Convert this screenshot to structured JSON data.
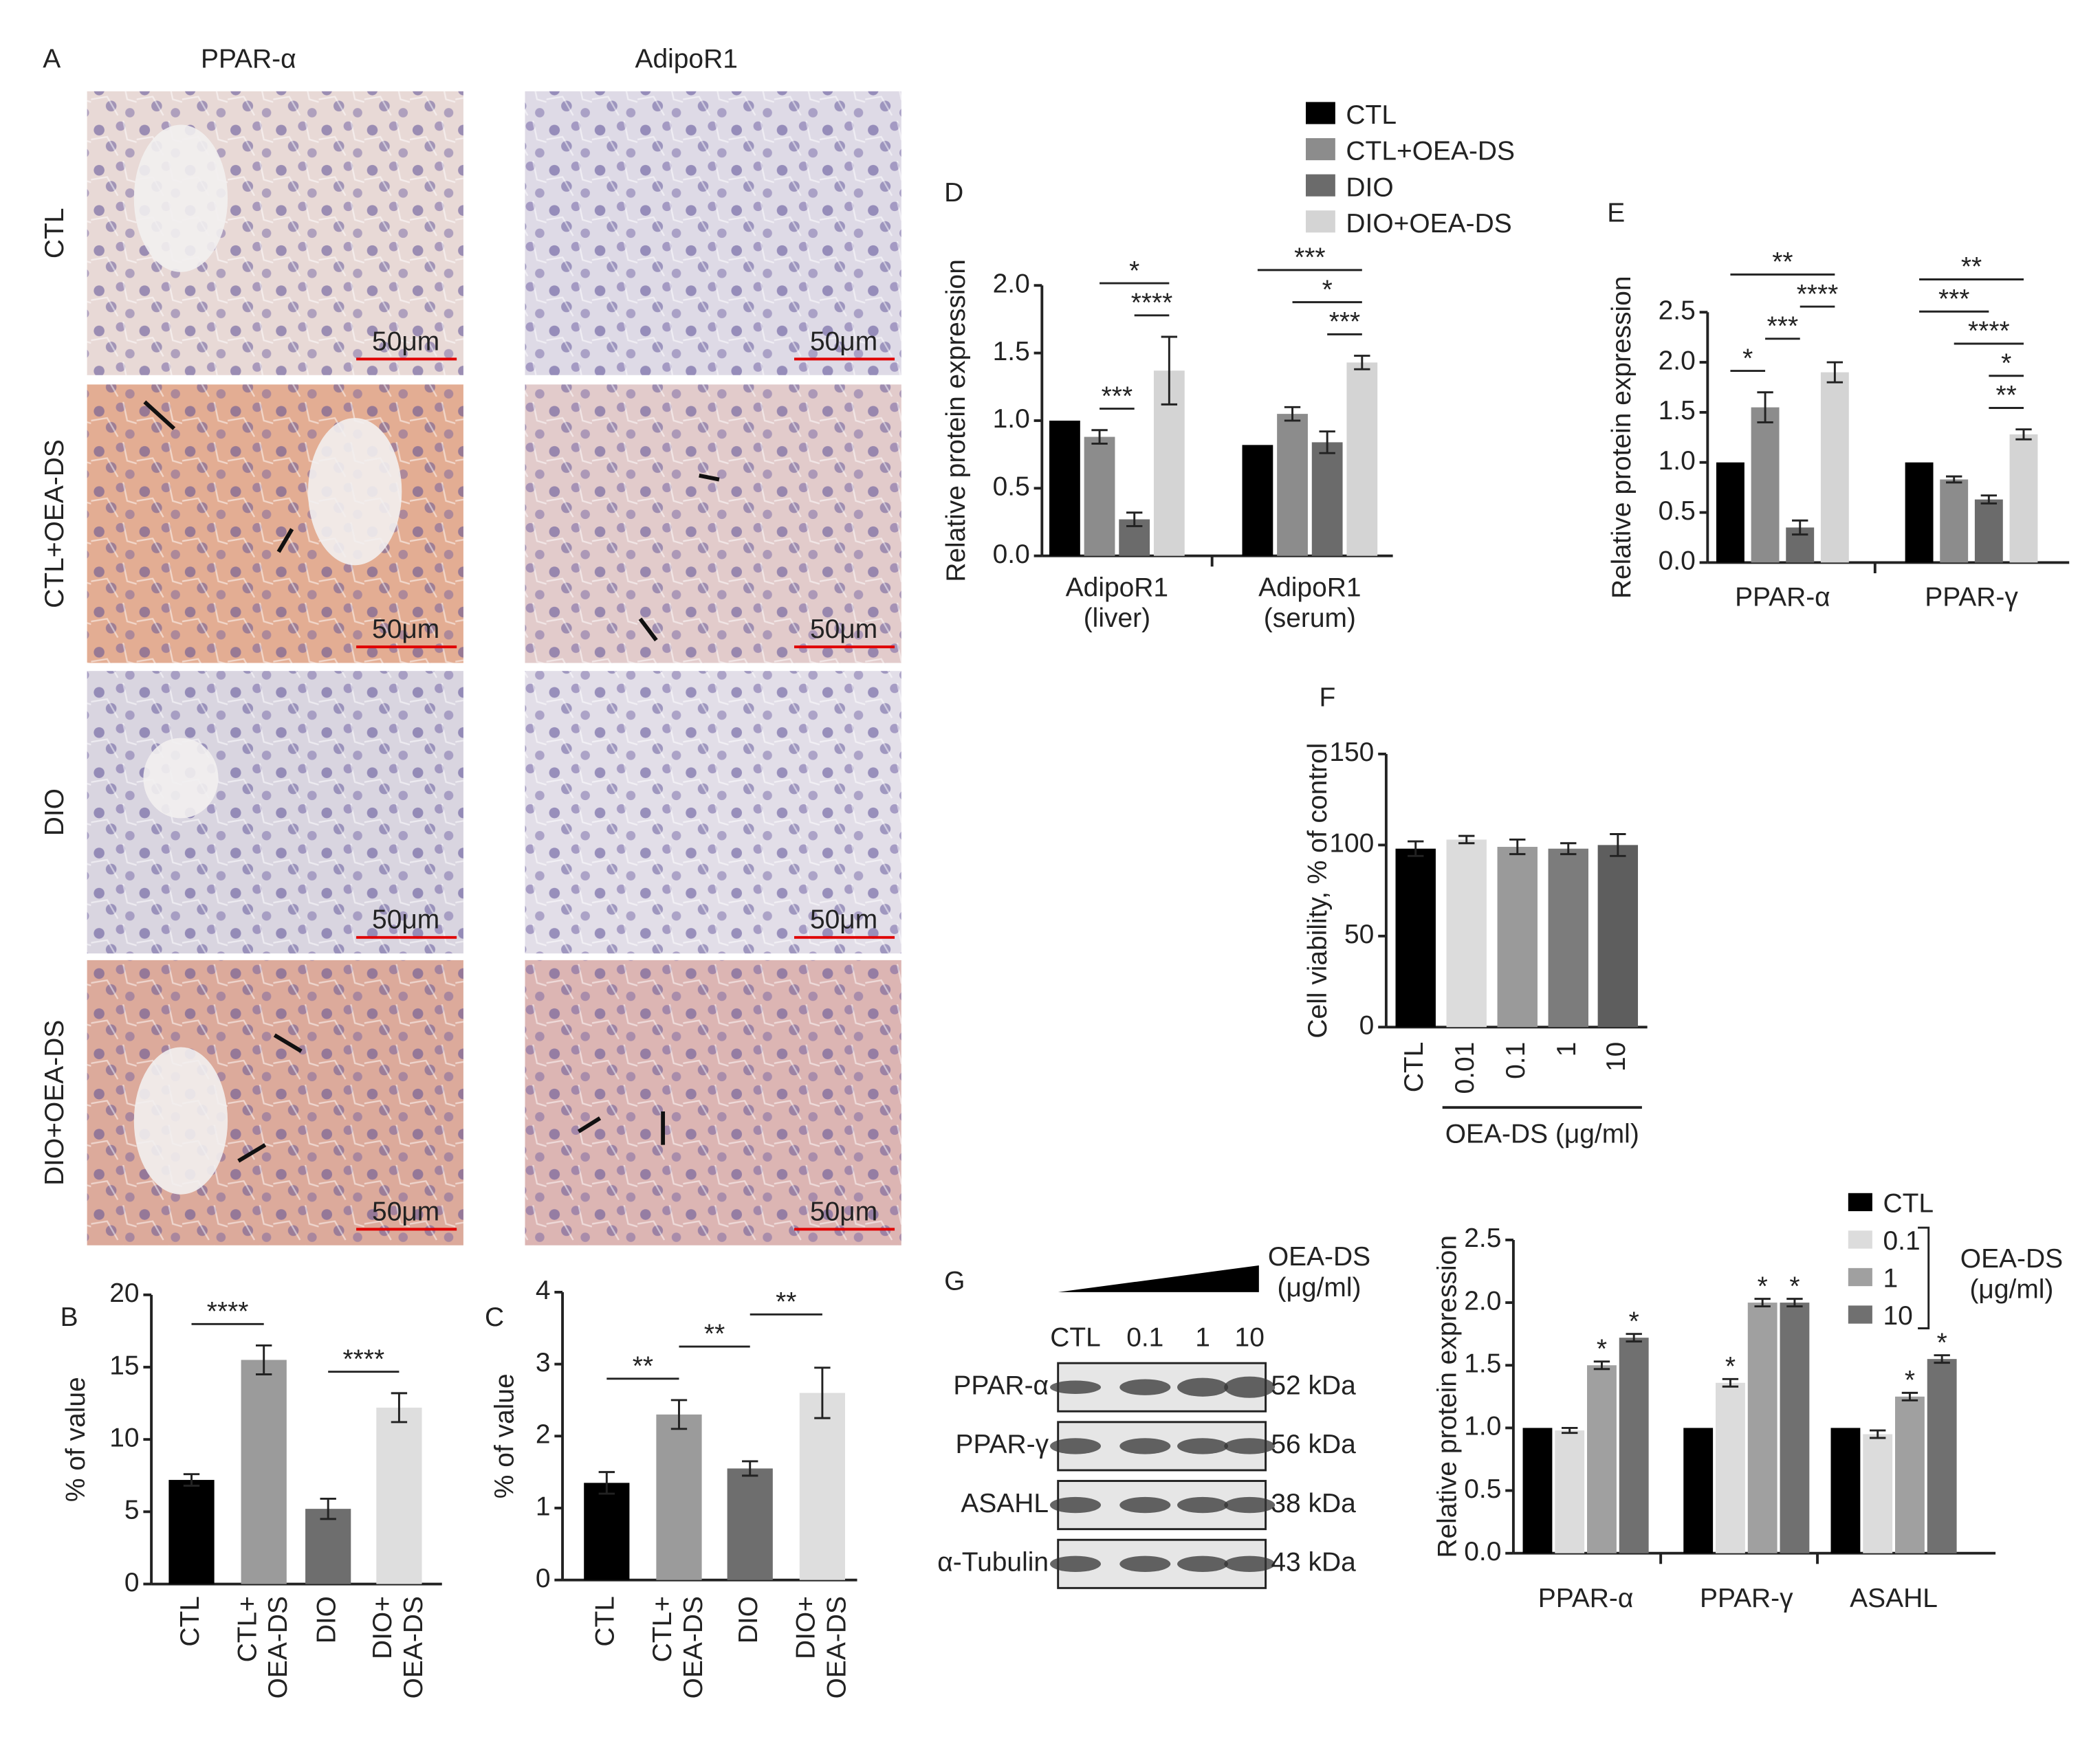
{
  "histology": {
    "panel": "A",
    "columns": [
      "PPAR-α",
      "AdipoR1"
    ],
    "rows": [
      "CTL",
      "CTL+OEA-DS",
      "DIO",
      "DIO+OEA-DS"
    ],
    "scale_bar": "50μm"
  },
  "blot": {
    "treatment": "OEA-DS\n(μg/ml)",
    "lanes": [
      "CTL",
      "0.1",
      "1",
      "10"
    ],
    "rows": [
      {
        "protein": "PPAR-α",
        "size": "52 kDa"
      },
      {
        "protein": "PPAR-γ",
        "size": "56 kDa"
      },
      {
        "protein": "ASAHL",
        "size": "38 kDa"
      },
      {
        "protein": "α-Tubulin",
        "size": "43 kDa"
      }
    ]
  },
  "chart_data": [
    {
      "type": "bar",
      "panel": "B",
      "ylabel": "% of value",
      "categories": [
        "CTL",
        "CTL+\nOEA-DS",
        "DIO",
        "DIO+\nOEA-DS"
      ],
      "values": [
        7.2,
        15.5,
        5.2,
        12.2
      ],
      "errors": [
        0.4,
        1.0,
        0.7,
        1.0
      ],
      "colors": [
        "#000000",
        "#9b9b9b",
        "#6e6e6e",
        "#dedede"
      ],
      "ylim": [
        0,
        20
      ],
      "yticks": [
        0,
        5,
        10,
        15,
        20
      ],
      "significance": [
        {
          "from": 0,
          "to": 1,
          "label": "****"
        },
        {
          "from": 2,
          "to": 3,
          "label": "****"
        }
      ]
    },
    {
      "type": "bar",
      "panel": "C",
      "ylabel": "% of value",
      "categories": [
        "CTL",
        "CTL+\nOEA-DS",
        "DIO",
        "DIO+\nOEA-DS"
      ],
      "values": [
        1.35,
        2.3,
        1.55,
        2.6
      ],
      "errors": [
        0.15,
        0.2,
        0.1,
        0.35
      ],
      "colors": [
        "#000000",
        "#9b9b9b",
        "#6e6e6e",
        "#dedede"
      ],
      "ylim": [
        0,
        4
      ],
      "yticks": [
        0,
        1,
        2,
        3,
        4
      ],
      "significance": [
        {
          "from": 0,
          "to": 1,
          "label": "**"
        },
        {
          "from": 1,
          "to": 2,
          "label": "**"
        },
        {
          "from": 2,
          "to": 3,
          "label": "**"
        }
      ]
    },
    {
      "type": "bar",
      "panel": "D",
      "ylabel": "Relative protein expression",
      "categories": [
        "AdipoR1\n(liver)",
        "AdipoR1\n(serum)"
      ],
      "series": [
        {
          "name": "CTL",
          "color": "#000000",
          "values": [
            1.0,
            0.82
          ],
          "errors": [
            null,
            null
          ]
        },
        {
          "name": "CTL+OEA-DS",
          "color": "#8c8c8c",
          "values": [
            0.88,
            1.05
          ],
          "errors": [
            0.05,
            0.05
          ]
        },
        {
          "name": "DIO",
          "color": "#6b6b6b",
          "values": [
            0.27,
            0.84
          ],
          "errors": [
            0.05,
            0.08
          ]
        },
        {
          "name": "DIO+OEA-DS",
          "color": "#d4d4d4",
          "values": [
            1.37,
            1.43
          ],
          "errors": [
            0.25,
            0.05
          ]
        }
      ],
      "ylim": [
        0,
        2
      ],
      "yticks": [
        {
          "value": 0,
          "label": "0.0"
        },
        0.5,
        {
          "value": 1,
          "label": "1.0"
        },
        1.5,
        {
          "value": 2,
          "label": "2.0"
        }
      ],
      "significance": [
        {
          "group": 0,
          "from": 1,
          "to": 2,
          "label": "***"
        },
        {
          "group": 0,
          "from": 2,
          "to": 3,
          "label": "****"
        },
        {
          "group": 0,
          "from": 1,
          "to": 3,
          "label": "*"
        },
        {
          "group": 1,
          "from": 2,
          "to": 3,
          "label": "***"
        },
        {
          "group": 1,
          "from": 1,
          "to": 3,
          "label": "*"
        },
        {
          "group": 1,
          "from": 0,
          "to": 3,
          "label": "***"
        }
      ]
    },
    {
      "type": "bar",
      "panel": "E",
      "ylabel": "Relative protein expression",
      "categories": [
        "PPAR-α",
        "PPAR-γ"
      ],
      "series": [
        {
          "color": "#000000",
          "values": [
            1.0,
            1.0
          ],
          "errors": [
            null,
            null
          ]
        },
        {
          "color": "#8c8c8c",
          "values": [
            1.55,
            0.83
          ],
          "errors": [
            0.15,
            0.03
          ]
        },
        {
          "color": "#6b6b6b",
          "values": [
            0.35,
            0.63
          ],
          "errors": [
            0.07,
            0.04
          ]
        },
        {
          "color": "#d4d4d4",
          "values": [
            1.9,
            1.28
          ],
          "errors": [
            0.1,
            0.05
          ]
        }
      ],
      "ylim": [
        0,
        2.5
      ],
      "yticks": [
        {
          "value": 0,
          "label": "0.0"
        },
        0.5,
        {
          "value": 1,
          "label": "1.0"
        },
        1.5,
        {
          "value": 2,
          "label": "2.0"
        },
        2.5
      ],
      "significance": [
        {
          "group": 0,
          "from": 0,
          "to": 1,
          "label": "*"
        },
        {
          "group": 0,
          "from": 1,
          "to": 2,
          "label": "***"
        },
        {
          "group": 0,
          "from": 2,
          "to": 3,
          "label": "****"
        },
        {
          "group": 0,
          "from": 0,
          "to": 3,
          "label": "**"
        },
        {
          "group": 1,
          "from": 2,
          "to": 3,
          "label": "**"
        },
        {
          "group": 1,
          "from": 2,
          "to": 3,
          "label": "*"
        },
        {
          "group": 1,
          "from": 1,
          "to": 3,
          "label": "****"
        },
        {
          "group": 1,
          "from": 0,
          "to": 2,
          "label": "***"
        },
        {
          "group": 1,
          "from": 0,
          "to": 3,
          "label": "**"
        }
      ]
    },
    {
      "type": "bar",
      "panel": "F",
      "ylabel": "Cell viability, % of control",
      "xlabel": "OEA-DS (μg/ml)",
      "categories": [
        "CTL",
        "0.01",
        "0.1",
        "1",
        "10"
      ],
      "values": [
        98,
        103,
        99,
        98,
        100
      ],
      "errors": [
        4,
        2,
        4,
        3,
        6
      ],
      "colors": [
        "#000000",
        "#dcdcdc",
        "#9a9a9a",
        "#7c7c7c",
        "#5e5e5e"
      ],
      "ylim": [
        0,
        150
      ],
      "yticks": [
        0,
        50,
        100,
        150
      ]
    },
    {
      "type": "bar",
      "panel": "G",
      "ylabel": "Relative protein expression",
      "categories": [
        "PPAR-α",
        "PPAR-γ",
        "ASAHL"
      ],
      "legend_title": "OEA-DS\n(μg/ml)",
      "series": [
        {
          "name": "CTL",
          "color": "#000000",
          "values": [
            1.0,
            1.0,
            1.0
          ],
          "errors": [
            null,
            null,
            null
          ]
        },
        {
          "name": "0.1",
          "color": "#dcdcdc",
          "values": [
            0.98,
            1.36,
            0.95
          ],
          "errors": [
            0.02,
            0.03,
            0.03
          ]
        },
        {
          "name": "1",
          "color": "#a0a0a0",
          "values": [
            1.5,
            2.0,
            1.25
          ],
          "errors": [
            0.03,
            0.03,
            0.03
          ]
        },
        {
          "name": "10",
          "color": "#707070",
          "values": [
            1.72,
            2.0,
            1.55
          ],
          "errors": [
            0.03,
            0.03,
            0.03
          ]
        }
      ],
      "ylim": [
        0,
        2.5
      ],
      "yticks": [
        {
          "value": 0,
          "label": "0.0"
        },
        0.5,
        {
          "value": 1,
          "label": "1.0"
        },
        1.5,
        {
          "value": 2,
          "label": "2.0"
        },
        2.5
      ],
      "stars": [
        {
          "series": 2,
          "index": 0,
          "label": "*"
        },
        {
          "series": 3,
          "index": 0,
          "label": "*"
        },
        {
          "series": 1,
          "index": 1,
          "label": "*"
        },
        {
          "series": 2,
          "index": 1,
          "label": "*"
        },
        {
          "series": 3,
          "index": 1,
          "label": "*"
        },
        {
          "series": 2,
          "index": 2,
          "label": "*"
        },
        {
          "series": 3,
          "index": 2,
          "label": "*"
        }
      ]
    }
  ]
}
